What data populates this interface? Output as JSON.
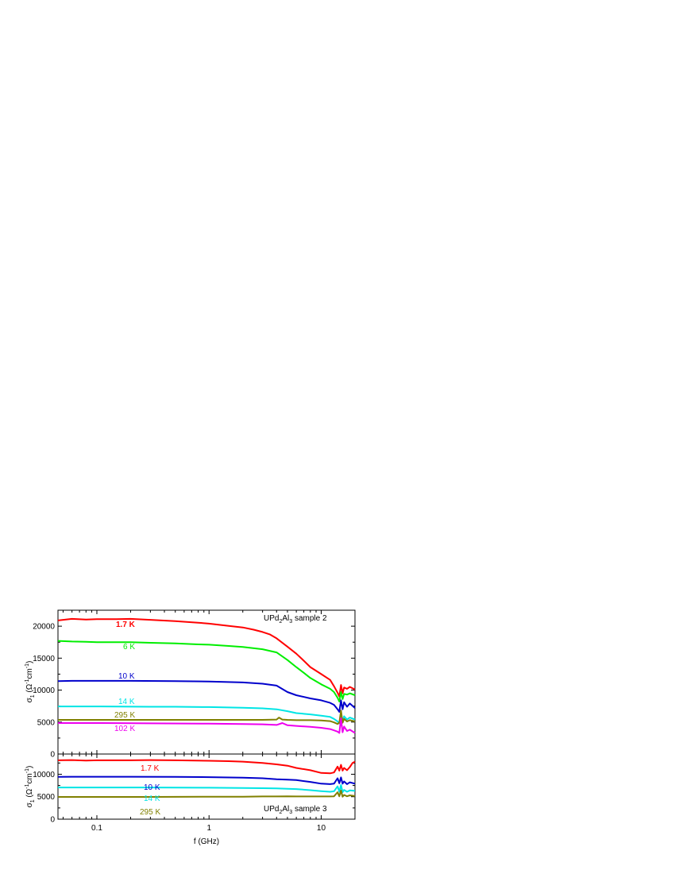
{
  "chart_data": [
    {
      "type": "line",
      "panel": "top",
      "title": "UPd2Al3 sample 2",
      "title_parts": [
        "UPd",
        "2",
        "Al",
        "3",
        " sample 2"
      ],
      "xlabel": "",
      "ylabel_parts": [
        "σ",
        "1",
        " (Ω",
        "-1",
        "cm",
        "-1",
        ")"
      ],
      "xscale": "log",
      "xlim": [
        0.045,
        20
      ],
      "ylim": [
        0,
        22500
      ],
      "yticks": [
        0,
        5000,
        10000,
        15000,
        20000
      ],
      "ytick_labels": [
        "0",
        "5000",
        "10000",
        "15000",
        "20000"
      ],
      "grid": false,
      "series": [
        {
          "name": "1.7 K",
          "color": "#ff0000",
          "x": [
            0.045,
            0.06,
            0.08,
            0.1,
            0.15,
            0.2,
            0.3,
            0.5,
            0.8,
            1,
            1.5,
            2,
            2.5,
            3,
            3.5,
            4,
            5,
            6,
            7,
            8,
            10,
            12,
            13,
            14,
            14.5,
            15,
            15.5,
            16,
            17,
            18,
            20
          ],
          "y": [
            20900,
            21150,
            21050,
            21100,
            21100,
            21150,
            21000,
            20800,
            20550,
            20400,
            20050,
            19800,
            19450,
            19100,
            18700,
            18100,
            16800,
            15700,
            14600,
            13600,
            12500,
            11600,
            10600,
            9600,
            9000,
            10800,
            9500,
            10400,
            10200,
            10500,
            10100
          ]
        },
        {
          "name": "6 K",
          "color": "#00ee00",
          "x": [
            0.045,
            0.06,
            0.08,
            0.1,
            0.2,
            0.3,
            0.5,
            0.8,
            1,
            1.5,
            2,
            3,
            4,
            5,
            6,
            7,
            8,
            10,
            12,
            13,
            14,
            14.5,
            15,
            15.5,
            16,
            17,
            18,
            20
          ],
          "y": [
            17700,
            17600,
            17550,
            17500,
            17500,
            17400,
            17300,
            17150,
            17100,
            16900,
            16750,
            16400,
            15900,
            14700,
            13600,
            12700,
            11900,
            10900,
            10200,
            9700,
            8800,
            8200,
            9700,
            8600,
            9400,
            9300,
            9500,
            9200
          ]
        },
        {
          "name": "10 K",
          "color": "#0000cc",
          "x": [
            0.045,
            0.06,
            0.1,
            0.2,
            0.5,
            1,
            2,
            3,
            4,
            5,
            6,
            8,
            10,
            12,
            13,
            14,
            14.5,
            15,
            15.5,
            16,
            17,
            18,
            20
          ],
          "y": [
            11400,
            11450,
            11450,
            11450,
            11400,
            11350,
            11200,
            11000,
            10700,
            9700,
            9200,
            8700,
            8400,
            8000,
            7700,
            7000,
            6600,
            8400,
            7000,
            8100,
            7400,
            7900,
            7200
          ]
        },
        {
          "name": "14 K",
          "color": "#00e5e5",
          "x": [
            0.045,
            0.1,
            0.3,
            0.5,
            1,
            2,
            3,
            4,
            5,
            6,
            8,
            10,
            12,
            13,
            14,
            14.5,
            15,
            15.5,
            16,
            17,
            18,
            20
          ],
          "y": [
            7450,
            7450,
            7400,
            7400,
            7350,
            7250,
            7150,
            7000,
            6700,
            6400,
            6200,
            6000,
            5800,
            5500,
            5100,
            4800,
            6400,
            5100,
            5900,
            5400,
            5700,
            5400
          ]
        },
        {
          "name": "295 K",
          "color": "#808000",
          "x": [
            0.045,
            0.1,
            0.3,
            1,
            2,
            3,
            4,
            4.2,
            4.5,
            5,
            6,
            8,
            10,
            12,
            13,
            14,
            14.5,
            15,
            15.5,
            16,
            17,
            18,
            20
          ],
          "y": [
            5350,
            5350,
            5350,
            5350,
            5350,
            5350,
            5400,
            5700,
            5400,
            5350,
            5300,
            5300,
            5250,
            5150,
            4950,
            4700,
            4900,
            6800,
            4900,
            5500,
            5100,
            5300,
            5100
          ]
        },
        {
          "name": "102 K",
          "color": "#ee00ee",
          "x": [
            0.045,
            0.1,
            0.3,
            1,
            2,
            3,
            4,
            4.5,
            5,
            6,
            8,
            10,
            12,
            13,
            14,
            14.5,
            15,
            15.5,
            16,
            17,
            18,
            20
          ],
          "y": [
            4850,
            4850,
            4800,
            4750,
            4700,
            4650,
            4550,
            4850,
            4500,
            4400,
            4250,
            4100,
            3900,
            3700,
            3500,
            3300,
            5600,
            3400,
            4300,
            3600,
            3800,
            3300
          ]
        }
      ]
    },
    {
      "type": "line",
      "panel": "bottom",
      "title": "UPd2Al3 sample 3",
      "title_parts": [
        "UPd",
        "2",
        "Al",
        "3",
        " sample 3"
      ],
      "xlabel": "f (GHz)",
      "ylabel_parts": [
        "σ",
        "1",
        " (Ω",
        "-1",
        "cm",
        "-1",
        ")"
      ],
      "xscale": "log",
      "xlim": [
        0.045,
        20
      ],
      "xticks": [
        0.1,
        1,
        10
      ],
      "xtick_labels": [
        "0.1",
        "1",
        "10"
      ],
      "ylim": [
        0,
        14500
      ],
      "yticks": [
        0,
        5000,
        10000
      ],
      "ytick_labels": [
        "0",
        "5000",
        "10000"
      ],
      "grid": false,
      "series": [
        {
          "name": "1.7 K",
          "color": "#ff0000",
          "x": [
            0.045,
            0.06,
            0.08,
            0.1,
            0.2,
            0.3,
            0.5,
            1,
            1.5,
            2,
            3,
            4,
            5,
            6,
            8,
            10,
            12,
            13,
            14,
            14.5,
            15,
            15.5,
            16,
            17,
            18,
            19,
            20
          ],
          "y": [
            13100,
            13150,
            13050,
            13100,
            13100,
            13150,
            13100,
            13000,
            12900,
            12800,
            12500,
            12200,
            11900,
            11400,
            10900,
            10300,
            10200,
            10400,
            11700,
            10800,
            12100,
            10800,
            11400,
            10900,
            11600,
            12500,
            12800
          ]
        },
        {
          "name": "10 K",
          "color": "#0000cc",
          "x": [
            0.045,
            0.06,
            0.1,
            0.2,
            0.5,
            1,
            2,
            3,
            4,
            5,
            6,
            8,
            10,
            12,
            13,
            14,
            14.5,
            15,
            15.5,
            16,
            17,
            18,
            20
          ],
          "y": [
            9400,
            9450,
            9450,
            9450,
            9400,
            9350,
            9250,
            9100,
            8900,
            8800,
            8700,
            8300,
            7900,
            7800,
            7900,
            9100,
            8000,
            9300,
            7900,
            8400,
            7800,
            8200,
            7900
          ]
        },
        {
          "name": "14 K",
          "color": "#00e5e5",
          "x": [
            0.045,
            0.1,
            0.3,
            1,
            2,
            3,
            4,
            5,
            6,
            8,
            10,
            12,
            13,
            14,
            14.5,
            15,
            15.5,
            16,
            17,
            18,
            20
          ],
          "y": [
            7050,
            7050,
            7050,
            7000,
            6950,
            6900,
            6850,
            6750,
            6700,
            6450,
            6250,
            6100,
            6200,
            7300,
            6100,
            7600,
            6000,
            6500,
            6100,
            6400,
            6300
          ]
        },
        {
          "name": "295 K",
          "color": "#808000",
          "x": [
            0.045,
            0.1,
            0.3,
            1,
            2,
            3,
            4,
            5,
            6,
            8,
            10,
            12,
            13,
            14,
            14.5,
            15,
            15.5,
            16,
            17,
            18,
            20
          ],
          "y": [
            4950,
            4950,
            4950,
            5000,
            5000,
            5050,
            5050,
            5100,
            5050,
            5050,
            5050,
            5050,
            5100,
            6000,
            5100,
            6400,
            5000,
            5400,
            5100,
            5300,
            5150
          ]
        }
      ]
    }
  ]
}
